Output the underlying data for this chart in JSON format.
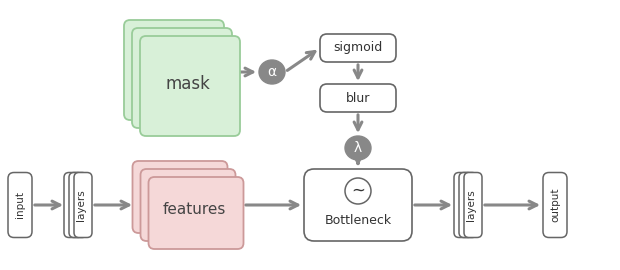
{
  "bg_color": "#ffffff",
  "gray_color": "#888888",
  "gray_dark": "#777777",
  "box_edge_color": "#666666",
  "green_face": "#d8f0d8",
  "green_edge": "#99cc99",
  "pink_face": "#f5d8d8",
  "pink_edge": "#cc9999",
  "white_face": "#ffffff",
  "mask_label": "mask",
  "features_label": "features",
  "bottleneck_label": "Bottleneck",
  "sigmoid_label": "sigmoid",
  "blur_label": "blur",
  "input_label": "input",
  "output_label": "output",
  "layers_label": "layers",
  "alpha_label": "α",
  "lambda_label": "λ",
  "tilde_label": "~",
  "figw": 6.2,
  "figh": 2.7,
  "dpi": 100
}
